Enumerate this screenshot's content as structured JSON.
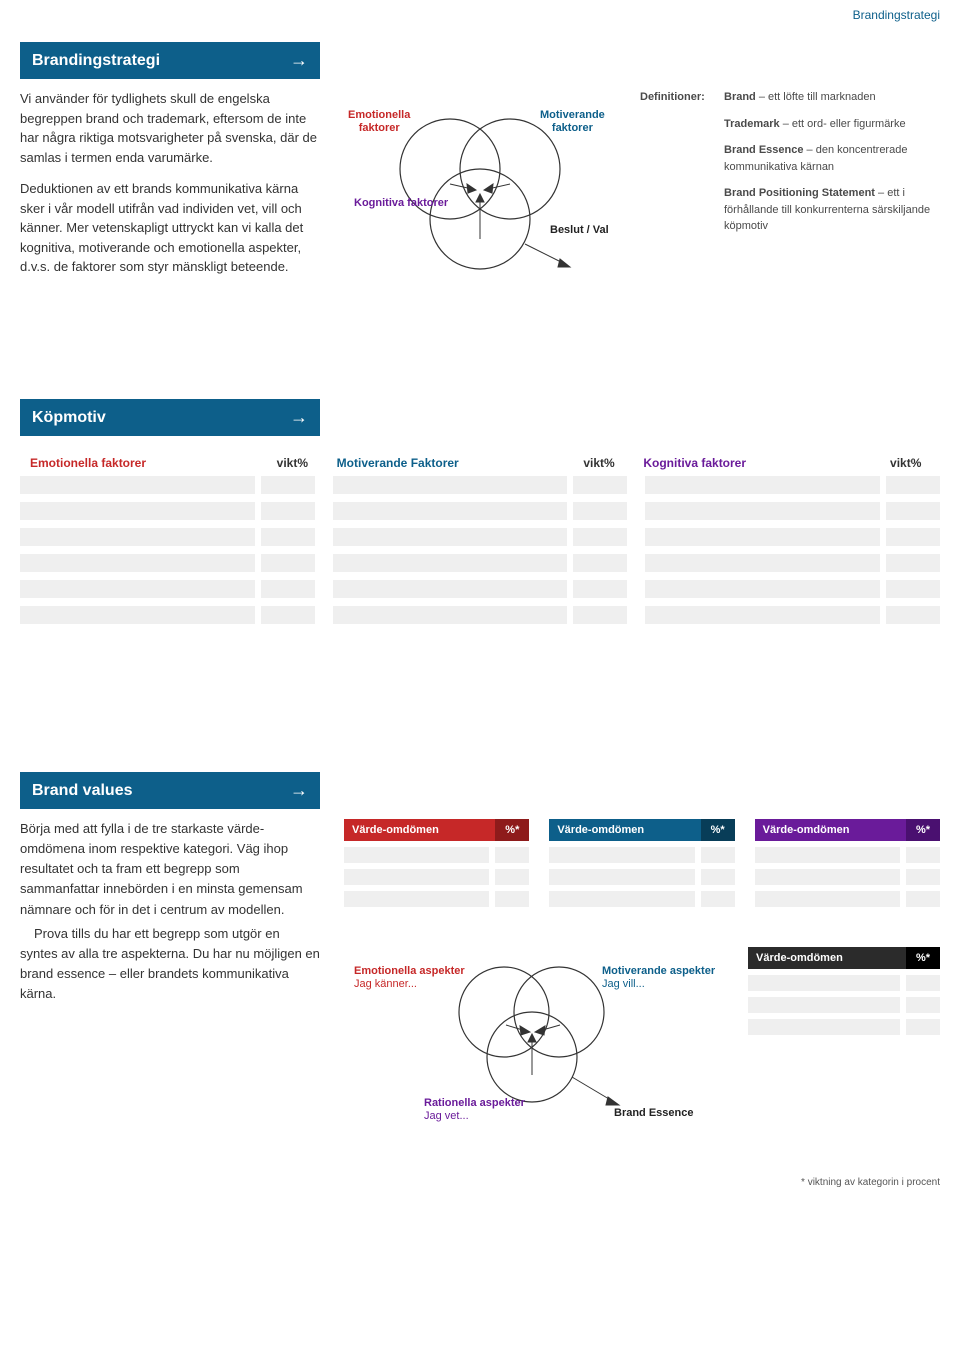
{
  "header_tag": "Brandingstrategi",
  "colors": {
    "bar": "#0d5f8a",
    "red": "#c62828",
    "blue": "#0d5f8a",
    "purple": "#6a1b9a",
    "dark": "#2b2b2b",
    "grey": "#efefef"
  },
  "section1": {
    "title": "Brandingstrategi",
    "para1": "Vi använder för tydlighets skull de engelska begreppen brand och trademark, eftersom de inte har några riktiga motsvarigheter på svenska, där de samlas i termen enda varumärke.",
    "para2": "Deduktionen av ett brands kommunikativa kärna sker i vår modell utifrån vad individen vet, vill och känner. Mer vetenskapligt uttryckt kan vi kalla det kognitiva, motiverande och emotionella aspekter, d.v.s. de faktorer som styr mänskligt beteende."
  },
  "venn1": {
    "emotionella_l1": "Emotionella",
    "emotionella_l2": "faktorer",
    "motiverande_l1": "Motiverande",
    "motiverande_l2": "faktorer",
    "kognitiva": "Kognitiva faktorer",
    "beslut": "Beslut / Val"
  },
  "definitions": {
    "label": "Definitioner:",
    "d1_b": "Brand",
    "d1_t": " – ett löfte till marknaden",
    "d2_b": "Trademark",
    "d2_t": " – ett ord- eller figurmärke",
    "d3_b": "Brand Essence",
    "d3_t": " – den koncentrerade kommunikativa kärnan",
    "d4_b": "Brand Positioning Statement",
    "d4_t": " – ett i förhållande till konkurrenterna särskiljande köpmotiv"
  },
  "section2": {
    "title": "Köpmotiv",
    "col1": "Emotionella faktorer",
    "col2": "Motiverande Faktorer",
    "col3": "Kognitiva faktorer",
    "vikt": "vikt%",
    "row_count": 6
  },
  "section3": {
    "title": "Brand values",
    "para": "Börja med att fylla i de tre starkaste värde-omdömena inom respektive kategori. Väg ihop resultatet och ta fram ett begrepp som sammanfattar innebörden i en minsta gemensam nämnare och för in det i centrum av modellen.",
    "para2": "Prova tills du har ett begrepp som utgör en syntes av alla tre aspekterna. Du har nu möjligen en brand essence – eller brandets kommunikativa kärna.",
    "head_label": "Värde-omdömen",
    "head_pct": "%*",
    "slot_count": 3
  },
  "venn2": {
    "emo_l1": "Emotionella aspekter",
    "emo_l2": "Jag känner...",
    "mot_l1": "Motiverande aspekter",
    "mot_l2": "Jag vill...",
    "rat_l1": "Rationella aspekter",
    "rat_l2": "Jag vet...",
    "essence": "Brand Essence"
  },
  "footnote": "* viktning av kategorin i procent"
}
